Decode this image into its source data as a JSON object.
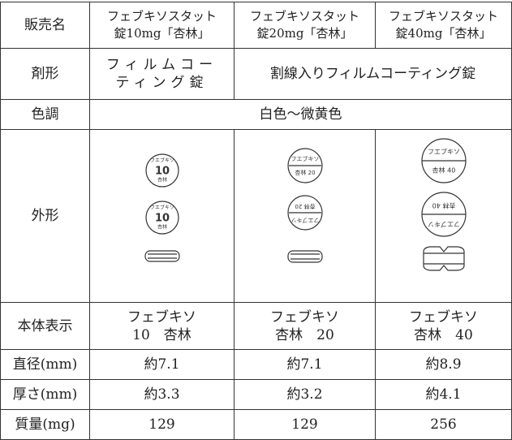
{
  "table": {
    "header": {
      "label": "販売名",
      "products": [
        [
          "フェブキソスタット",
          "錠10mg「杏林」"
        ],
        [
          "フェブキソスタット",
          "錠20mg「杏林」"
        ],
        [
          "フェブキソスタット",
          "錠40mg「杏林」"
        ]
      ]
    },
    "dosage_form": {
      "label": "剤形",
      "first": [
        "フィルムコー",
        "ティング錠"
      ],
      "rest": "割線入りフィルムコーティング錠"
    },
    "color": {
      "label": "色調",
      "value": "白色～微黄色"
    },
    "shape": {
      "label": "外形",
      "imprints": [
        {
          "front": [
            "フエブキソ",
            "10",
            "杏林"
          ],
          "back": [
            "フエブキソ",
            "10",
            "杏林"
          ]
        },
        {
          "front": [
            "フエブキソ",
            "杏林 20"
          ],
          "back": [
            "フエブキソ",
            "杏林 20"
          ]
        },
        {
          "front": [
            "フエブキソ",
            "杏林 40"
          ],
          "back": [
            "フエブキソ",
            "杏林 40"
          ]
        }
      ]
    },
    "marking": {
      "label": "本体表示",
      "values": [
        [
          "フェブキソ",
          "10　杏林"
        ],
        [
          "フェブキソ",
          "杏林　20"
        ],
        [
          "フェブキソ",
          "杏林　40"
        ]
      ]
    },
    "diameter": {
      "label": "直径(mm)",
      "values": [
        "約7.1",
        "約7.1",
        "約8.9"
      ]
    },
    "thickness": {
      "label": "厚さ(mm)",
      "values": [
        "約3.3",
        "約3.2",
        "約4.1"
      ]
    },
    "mass": {
      "label": "質量(mg)",
      "values": [
        "129",
        "129",
        "256"
      ]
    }
  }
}
